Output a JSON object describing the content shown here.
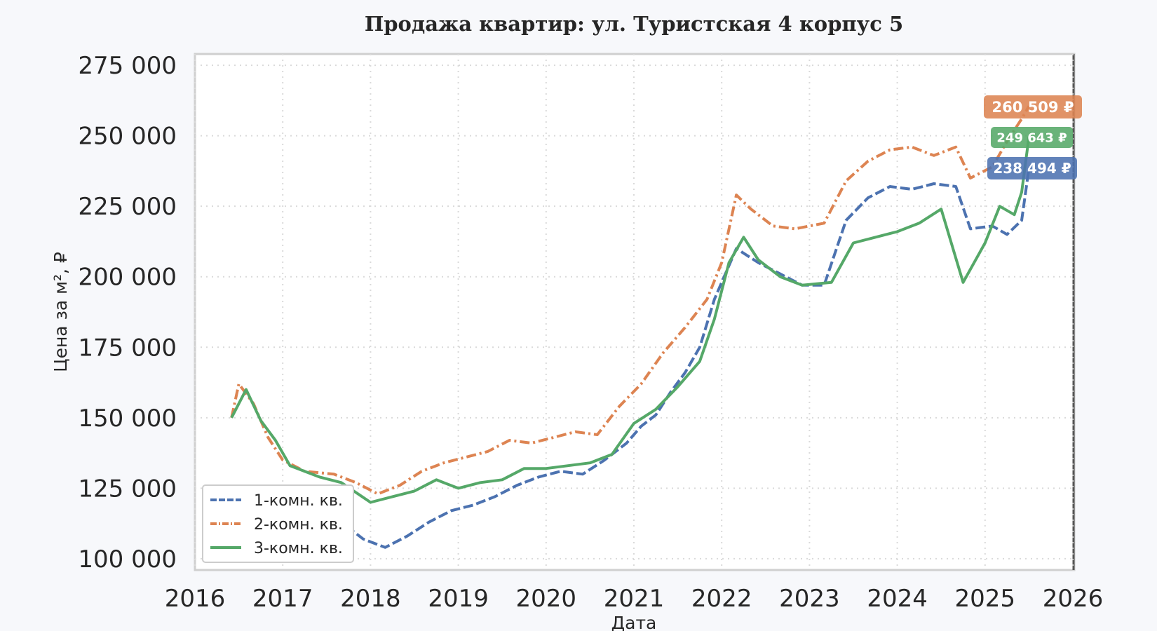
{
  "chart_data": {
    "type": "line",
    "title": "Продажа квартир: ул. Туристская 4 корпус 5",
    "xlabel": "Дата",
    "ylabel": "Цена за м², ₽",
    "xlim": [
      2016,
      2026
    ],
    "ylim": [
      96000,
      279000
    ],
    "x_ticks": [
      "2016",
      "2017",
      "2018",
      "2019",
      "2020",
      "2021",
      "2022",
      "2023",
      "2024",
      "2025",
      "2026"
    ],
    "y_ticks": [
      100000,
      125000,
      150000,
      175000,
      200000,
      225000,
      250000,
      275000
    ],
    "y_tick_labels": [
      "100 000",
      "125 000",
      "150 000",
      "175 000",
      "200 000",
      "225 000",
      "250 000",
      "275 000"
    ],
    "grid": true,
    "legend_position": "lower-left",
    "series": [
      {
        "name": "1-комн. кв.",
        "color": "#4c72b0",
        "dash": "dashed",
        "end_label": "238 494 ₽",
        "points": [
          [
            "2016-06-01",
            118000
          ],
          [
            "2016-09-01",
            118500
          ],
          [
            "2017-01-01",
            114000
          ],
          [
            "2017-04-01",
            111000
          ],
          [
            "2017-08-01",
            109000
          ],
          [
            "2017-10-01",
            111000
          ],
          [
            "2017-12-01",
            107000
          ],
          [
            "2018-03-01",
            104000
          ],
          [
            "2018-06-01",
            108000
          ],
          [
            "2018-09-01",
            113000
          ],
          [
            "2018-12-01",
            117000
          ],
          [
            "2019-03-01",
            119000
          ],
          [
            "2019-06-01",
            122000
          ],
          [
            "2019-09-01",
            126000
          ],
          [
            "2019-12-01",
            129000
          ],
          [
            "2020-03-01",
            131000
          ],
          [
            "2020-06-01",
            130000
          ],
          [
            "2020-09-01",
            135000
          ],
          [
            "2020-12-01",
            141000
          ],
          [
            "2021-02-01",
            147000
          ],
          [
            "2021-04-01",
            151000
          ],
          [
            "2021-06-01",
            159000
          ],
          [
            "2021-08-01",
            166000
          ],
          [
            "2021-10-01",
            175000
          ],
          [
            "2021-12-01",
            192000
          ],
          [
            "2022-03-01",
            210000
          ],
          [
            "2022-06-01",
            205000
          ],
          [
            "2022-09-01",
            201000
          ],
          [
            "2022-12-01",
            197000
          ],
          [
            "2023-03-01",
            197000
          ],
          [
            "2023-06-01",
            220000
          ],
          [
            "2023-09-01",
            228000
          ],
          [
            "2023-12-01",
            232000
          ],
          [
            "2024-03-01",
            231000
          ],
          [
            "2024-06-01",
            233000
          ],
          [
            "2024-09-01",
            232000
          ],
          [
            "2024-11-01",
            217000
          ],
          [
            "2025-02-01",
            218000
          ],
          [
            "2025-04-01",
            215000
          ],
          [
            "2025-06-01",
            220000
          ],
          [
            "2025-07-01",
            238494
          ]
        ]
      },
      {
        "name": "2-комн. кв.",
        "color": "#dd8452",
        "dash": "dashdot",
        "end_label": "260 509 ₽",
        "points": [
          [
            "2016-06-01",
            150000
          ],
          [
            "2016-07-01",
            162000
          ],
          [
            "2016-09-01",
            155000
          ],
          [
            "2016-11-01",
            143000
          ],
          [
            "2017-01-01",
            135000
          ],
          [
            "2017-04-01",
            131000
          ],
          [
            "2017-08-01",
            130000
          ],
          [
            "2017-11-01",
            127000
          ],
          [
            "2018-02-01",
            123000
          ],
          [
            "2018-05-01",
            126000
          ],
          [
            "2018-08-01",
            131000
          ],
          [
            "2018-11-01",
            134000
          ],
          [
            "2019-02-01",
            136000
          ],
          [
            "2019-05-01",
            138000
          ],
          [
            "2019-08-01",
            142000
          ],
          [
            "2019-11-01",
            141000
          ],
          [
            "2020-02-01",
            143000
          ],
          [
            "2020-05-01",
            145000
          ],
          [
            "2020-08-01",
            144000
          ],
          [
            "2020-11-01",
            154000
          ],
          [
            "2021-02-01",
            162000
          ],
          [
            "2021-05-01",
            173000
          ],
          [
            "2021-08-01",
            182000
          ],
          [
            "2021-11-01",
            192000
          ],
          [
            "2022-01-01",
            205000
          ],
          [
            "2022-03-01",
            229000
          ],
          [
            "2022-05-01",
            224000
          ],
          [
            "2022-08-01",
            218000
          ],
          [
            "2022-11-01",
            217000
          ],
          [
            "2023-03-01",
            219000
          ],
          [
            "2023-06-01",
            234000
          ],
          [
            "2023-09-01",
            241000
          ],
          [
            "2023-12-01",
            245000
          ],
          [
            "2024-03-01",
            246000
          ],
          [
            "2024-06-01",
            243000
          ],
          [
            "2024-09-01",
            246000
          ],
          [
            "2024-11-01",
            235000
          ],
          [
            "2025-02-01",
            239000
          ],
          [
            "2025-04-01",
            248000
          ],
          [
            "2025-06-01",
            256000
          ],
          [
            "2025-07-01",
            260509
          ]
        ]
      },
      {
        "name": "3-комн. кв.",
        "color": "#55a868",
        "dash": "solid",
        "end_label": "249 643 ₽",
        "points": [
          [
            "2016-06-01",
            150000
          ],
          [
            "2016-08-01",
            160000
          ],
          [
            "2016-10-01",
            149000
          ],
          [
            "2016-12-01",
            142000
          ],
          [
            "2017-02-01",
            133000
          ],
          [
            "2017-06-01",
            129000
          ],
          [
            "2017-09-01",
            127000
          ],
          [
            "2018-01-01",
            120000
          ],
          [
            "2018-04-01",
            122000
          ],
          [
            "2018-07-01",
            124000
          ],
          [
            "2018-10-01",
            128000
          ],
          [
            "2019-01-01",
            125000
          ],
          [
            "2019-04-01",
            127000
          ],
          [
            "2019-07-01",
            128000
          ],
          [
            "2019-10-01",
            132000
          ],
          [
            "2020-01-01",
            132000
          ],
          [
            "2020-04-01",
            133000
          ],
          [
            "2020-07-01",
            134000
          ],
          [
            "2020-10-01",
            137000
          ],
          [
            "2021-01-01",
            148000
          ],
          [
            "2021-04-01",
            153000
          ],
          [
            "2021-07-01",
            161000
          ],
          [
            "2021-10-01",
            170000
          ],
          [
            "2021-12-01",
            185000
          ],
          [
            "2022-02-01",
            205000
          ],
          [
            "2022-04-01",
            214000
          ],
          [
            "2022-06-01",
            206000
          ],
          [
            "2022-09-01",
            200000
          ],
          [
            "2022-12-01",
            197000
          ],
          [
            "2023-04-01",
            198000
          ],
          [
            "2023-07-01",
            212000
          ],
          [
            "2023-10-01",
            214000
          ],
          [
            "2024-01-01",
            216000
          ],
          [
            "2024-04-01",
            219000
          ],
          [
            "2024-07-01",
            224000
          ],
          [
            "2024-10-01",
            198000
          ],
          [
            "2025-01-01",
            212000
          ],
          [
            "2025-03-01",
            225000
          ],
          [
            "2025-05-01",
            222000
          ],
          [
            "2025-06-01",
            230000
          ],
          [
            "2025-07-01",
            249643
          ]
        ]
      }
    ]
  }
}
